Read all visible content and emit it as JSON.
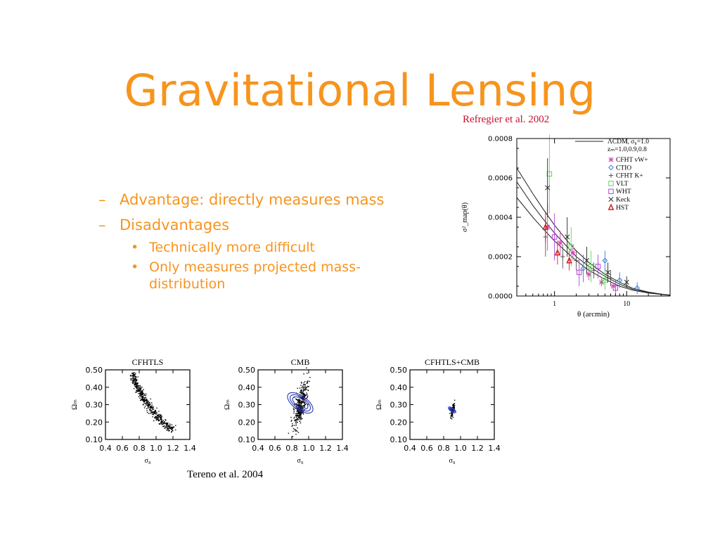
{
  "slide": {
    "title": "Gravitational Lensing",
    "credit_top": "Refregier et al. 2002",
    "credit_bottom": "Tereno et al. 2004",
    "bullets": [
      {
        "text": "Advantage: directly measures mass",
        "sub": []
      },
      {
        "text": "Disadvantages",
        "sub": [
          "Technically more difficult",
          "Only measures projected mass-",
          "distribution"
        ]
      }
    ],
    "dash": "–",
    "dot": "•"
  },
  "colors": {
    "accent": "#f7941d",
    "credit": "#c8102e"
  },
  "chart_data": [
    {
      "type": "scatter",
      "xlabel": "θ (arcmin)",
      "ylabel": "σ²_map(θ)",
      "xscale": "log",
      "xlim": [
        0.3,
        40
      ],
      "ylim": [
        0,
        0.0008
      ],
      "xticks": [
        "1",
        "10"
      ],
      "yticks": [
        "0.0000",
        "0.0002",
        "0.0004",
        "0.0006",
        "0.0008"
      ],
      "legend_header": [
        "ΛCDM, σ₈=1.0",
        "zₘ=1.0,0.9,0.8"
      ],
      "legend_placement": "top-right",
      "series": [
        {
          "name": "CFHT vW+",
          "marker": "asterisk",
          "color": "#d63fb4",
          "points": [
            [
              0.8,
              0.00035,
              0.00012
            ],
            [
              1.2,
              0.00027,
              6e-05
            ],
            [
              1.8,
              0.00022,
              4e-05
            ],
            [
              3,
              0.00011,
              3e-05
            ],
            [
              4.5,
              7e-05,
              2e-05
            ],
            [
              6.5,
              5e-05,
              2e-05
            ]
          ]
        },
        {
          "name": "CTIO",
          "marker": "diamond",
          "color": "#3a7bd5",
          "points": [
            [
              2.5,
              0.00014,
              7e-05
            ],
            [
              5,
              0.00018,
              5e-05
            ],
            [
              8,
              8e-05,
              4e-05
            ],
            [
              14,
              4e-05,
              3e-05
            ]
          ]
        },
        {
          "name": "CFHT K+",
          "marker": "plus",
          "color": "#555555",
          "points": [
            [
              0.75,
              0.0003,
              0.0001
            ],
            [
              1.3,
              0.0002,
              6e-05
            ],
            [
              2,
              0.00018,
              5e-05
            ],
            [
              3.5,
              0.00013,
              4e-05
            ],
            [
              6,
              9e-05,
              4e-05
            ]
          ]
        },
        {
          "name": "VLT",
          "marker": "square",
          "color": "#5cd65c",
          "points": [
            [
              0.85,
              0.00062,
              0.0002
            ],
            [
              1.7,
              0.00025,
              0.0001
            ],
            [
              3.2,
              0.00015,
              8e-05
            ],
            [
              5,
              8e-05,
              5e-05
            ]
          ]
        },
        {
          "name": "WHT",
          "marker": "square",
          "color": "#b040d8",
          "points": [
            [
              1,
              0.0003,
              0.00012
            ],
            [
              2.2,
              0.00012,
              7e-05
            ],
            [
              4,
              0.00015,
              6e-05
            ],
            [
              7,
              4e-05,
              4e-05
            ]
          ]
        },
        {
          "name": "Keck",
          "marker": "cross",
          "color": "#222222",
          "points": [
            [
              0.8,
              0.00055,
              0.00015
            ],
            [
              1.5,
              0.0003,
              0.0001
            ],
            [
              2.8,
              0.00018,
              7e-05
            ],
            [
              5.5,
              0.00012,
              5e-05
            ],
            [
              10,
              7e-05,
              3e-05
            ]
          ]
        },
        {
          "name": "HST",
          "marker": "triangle",
          "color": "#d62020",
          "points": [
            [
              0.75,
              0.00035,
              8e-05
            ],
            [
              1.1,
              0.00022,
              6e-05
            ],
            [
              1.6,
              0.00018,
              5e-05
            ]
          ]
        }
      ],
      "model_curves": [
        {
          "z": 1.0,
          "points": [
            [
              0.3,
              0.00065
            ],
            [
              0.5,
              0.00052
            ],
            [
              0.7,
              0.00044
            ],
            [
              1,
              0.00036
            ],
            [
              1.5,
              0.00028
            ],
            [
              2,
              0.00023
            ],
            [
              3,
              0.00017
            ],
            [
              5,
              0.00011
            ],
            [
              8,
              7e-05
            ],
            [
              12,
              4e-05
            ],
            [
              20,
              2e-05
            ],
            [
              30,
              1e-05
            ],
            [
              40,
              5e-06
            ]
          ]
        },
        {
          "z": 0.9,
          "points": [
            [
              0.3,
              0.00058
            ],
            [
              0.5,
              0.00046
            ],
            [
              0.7,
              0.00039
            ],
            [
              1,
              0.00032
            ],
            [
              1.5,
              0.00025
            ],
            [
              2,
              0.0002
            ],
            [
              3,
              0.00015
            ],
            [
              5,
              0.0001
            ],
            [
              8,
              6e-05
            ],
            [
              12,
              3.5e-05
            ],
            [
              20,
              1.8e-05
            ],
            [
              30,
              9e-06
            ],
            [
              40,
              4e-06
            ]
          ]
        },
        {
          "z": 0.8,
          "points": [
            [
              0.3,
              0.0005
            ],
            [
              0.5,
              0.0004
            ],
            [
              0.7,
              0.00034
            ],
            [
              1,
              0.00028
            ],
            [
              1.5,
              0.00022
            ],
            [
              2,
              0.00018
            ],
            [
              3,
              0.00013
            ],
            [
              5,
              8.5e-05
            ],
            [
              8,
              5e-05
            ],
            [
              12,
              3e-05
            ],
            [
              20,
              1.5e-05
            ],
            [
              30,
              8e-06
            ],
            [
              40,
              4e-06
            ]
          ]
        }
      ]
    },
    {
      "type": "scatter",
      "title": "CFHTLS",
      "xlabel": "σ₈",
      "ylabel": "Ωₘ",
      "xlim": [
        0.4,
        1.4
      ],
      "ylim": [
        0.1,
        0.5
      ],
      "xticks": [
        "0.4",
        "0.6",
        "0.8",
        "1.0",
        "1.2",
        "1.4"
      ],
      "yticks": [
        "0.10",
        "0.20",
        "0.30",
        "0.40",
        "0.50"
      ],
      "cloud": {
        "shape": "banana",
        "color": "#000000",
        "path": [
          [
            0.72,
            0.47
          ],
          [
            0.77,
            0.41
          ],
          [
            0.83,
            0.35
          ],
          [
            0.9,
            0.3
          ],
          [
            0.98,
            0.25
          ],
          [
            1.08,
            0.2
          ],
          [
            1.2,
            0.15
          ]
        ]
      }
    },
    {
      "type": "scatter",
      "title": "CMB",
      "xlabel": "σ₈",
      "ylabel": "Ωₘ",
      "xlim": [
        0.4,
        1.4
      ],
      "ylim": [
        0.1,
        0.5
      ],
      "xticks": [
        "0.4",
        "0.6",
        "0.8",
        "1.0",
        "1.2",
        "1.4"
      ],
      "yticks": [
        "0.10",
        "0.20",
        "0.30",
        "0.40",
        "0.50"
      ],
      "cloud": {
        "shape": "ellipse",
        "color": "#000000",
        "center": [
          0.9,
          0.3
        ],
        "spread": [
          0.08,
          0.07
        ],
        "angle": -55
      },
      "contours": {
        "color": "#2a3ab8",
        "center": [
          0.9,
          0.31
        ],
        "rx": [
          0.09,
          0.12,
          0.15
        ],
        "ry": [
          0.06,
          0.08,
          0.1
        ],
        "angle": -55
      }
    },
    {
      "type": "scatter",
      "title": "CFHTLS+CMB",
      "xlabel": "σ₈",
      "ylabel": "Ωₘ",
      "xlim": [
        0.4,
        1.4
      ],
      "ylim": [
        0.1,
        0.5
      ],
      "xticks": [
        "0.4",
        "0.6",
        "0.8",
        "1.0",
        "1.2",
        "1.4"
      ],
      "yticks": [
        "0.10",
        "0.20",
        "0.30",
        "0.40",
        "0.50"
      ],
      "cloud": {
        "shape": "ellipse",
        "color": "#000000",
        "center": [
          0.9,
          0.27
        ],
        "spread": [
          0.025,
          0.02
        ],
        "angle": -55
      },
      "contours": {
        "color": "#2a3ab8",
        "center": [
          0.9,
          0.27
        ],
        "rx": [
          0.02,
          0.03,
          0.04
        ],
        "ry": [
          0.015,
          0.022,
          0.03
        ],
        "angle": -55
      }
    }
  ]
}
